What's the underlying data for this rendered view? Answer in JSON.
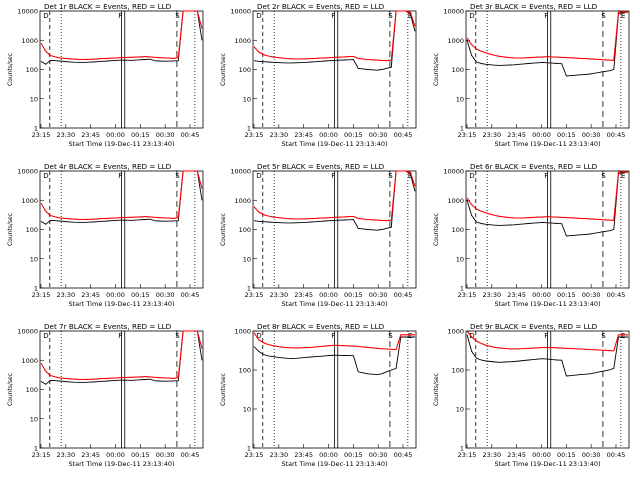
{
  "chart_data": [
    {
      "type": "line",
      "title": "Det 1r BLACK = Events, RED = LLD",
      "profile": "a",
      "xlabel": "Start Time (19-Dec-11 23:13:40)",
      "ylabel": "Counts/sec",
      "tick_labels_x": [
        "23:15",
        "23:30",
        "23:45",
        "00:00",
        "00:15",
        "00:30",
        "00:45"
      ],
      "tick_labels_y": [
        "1",
        "10",
        "100",
        "1000",
        "10000"
      ],
      "flags": [
        "D",
        "F",
        "S"
      ],
      "series": [
        {
          "color": "#000000",
          "values": [
            190,
            150,
            205,
            200,
            195,
            188,
            182,
            178,
            176,
            175,
            177,
            180,
            185,
            190,
            195,
            200,
            205,
            210,
            208,
            205,
            210,
            215,
            220,
            225,
            200,
            196,
            192,
            194,
            197,
            200,
            10000,
            10000,
            10000,
            10000,
            1000
          ]
        },
        {
          "color": "#ff0000",
          "values": [
            800,
            420,
            300,
            270,
            250,
            240,
            232,
            226,
            222,
            220,
            222,
            225,
            230,
            235,
            240,
            245,
            250,
            255,
            258,
            262,
            265,
            270,
            275,
            270,
            262,
            256,
            250,
            245,
            240,
            255,
            10000,
            10000,
            10000,
            10000,
            2500
          ]
        }
      ]
    },
    {
      "type": "line",
      "title": "Det 2r BLACK = Events, RED = LLD",
      "profile": "b",
      "xlabel": "Start Time (19-Dec-11 23:13:40)",
      "ylabel": "Counts/sec",
      "tick_labels_x": [
        "23:15",
        "23:30",
        "23:45",
        "00:00",
        "00:15",
        "00:30",
        "00:45"
      ],
      "tick_labels_y": [
        "1",
        "10",
        "100",
        "1000",
        "10000"
      ],
      "flags": [
        "D",
        "F",
        "S",
        "E"
      ],
      "series": [
        {
          "color": "#000000",
          "values": [
            200,
            190,
            185,
            180,
            176,
            172,
            170,
            168,
            168,
            170,
            172,
            175,
            180,
            185,
            190,
            195,
            200,
            205,
            208,
            212,
            215,
            218,
            110,
            105,
            100,
            98,
            95,
            100,
            110,
            120,
            10000,
            10000,
            10000,
            8000,
            2000
          ]
        },
        {
          "color": "#ff0000",
          "values": [
            600,
            400,
            320,
            290,
            270,
            255,
            245,
            238,
            232,
            228,
            230,
            232,
            236,
            240,
            245,
            250,
            255,
            260,
            265,
            270,
            275,
            280,
            240,
            230,
            220,
            215,
            210,
            205,
            200,
            210,
            10000,
            10000,
            10000,
            9000,
            3000
          ]
        }
      ]
    },
    {
      "type": "line",
      "title": "Det 3r BLACK = Events, RED = LLD",
      "profile": "c",
      "xlabel": "Start Time (19-Dec-11 23:13:40)",
      "ylabel": "Counts/sec",
      "tick_labels_x": [
        "23:15",
        "23:30",
        "23:45",
        "00:00",
        "00:15",
        "00:30",
        "00:45"
      ],
      "tick_labels_y": [
        "1",
        "10",
        "100",
        "1000",
        "10000"
      ],
      "flags": [
        "D",
        "F",
        "S",
        "E"
      ],
      "series": [
        {
          "color": "#000000",
          "values": [
            1000,
            300,
            180,
            160,
            150,
            145,
            140,
            138,
            140,
            142,
            145,
            150,
            155,
            160,
            165,
            170,
            175,
            170,
            165,
            160,
            158,
            60,
            62,
            64,
            66,
            68,
            70,
            75,
            80,
            85,
            90,
            100,
            8000,
            9000,
            9000
          ]
        },
        {
          "color": "#ff0000",
          "values": [
            1200,
            700,
            500,
            420,
            370,
            330,
            300,
            280,
            265,
            255,
            250,
            248,
            250,
            255,
            260,
            265,
            270,
            275,
            270,
            265,
            260,
            255,
            250,
            245,
            240,
            235,
            230,
            225,
            220,
            215,
            210,
            205,
            9000,
            9500,
            9500
          ]
        }
      ]
    },
    {
      "type": "line",
      "title": "Det 4r BLACK = Events, RED = LLD",
      "profile": "a",
      "xlabel": "Start Time (19-Dec-11 23:13:40)",
      "ylabel": "Counts/sec",
      "tick_labels_x": [
        "23:15",
        "23:30",
        "23:45",
        "00:00",
        "00:15",
        "00:30",
        "00:45"
      ],
      "tick_labels_y": [
        "1",
        "10",
        "100",
        "1000",
        "10000"
      ],
      "flags": [
        "D",
        "F",
        "S"
      ],
      "series": [
        {
          "color": "#000000",
          "values": [
            190,
            150,
            205,
            200,
            195,
            188,
            182,
            178,
            176,
            175,
            177,
            180,
            185,
            190,
            195,
            200,
            205,
            210,
            208,
            205,
            210,
            215,
            220,
            225,
            200,
            196,
            192,
            194,
            197,
            200,
            10000,
            10000,
            10000,
            10000,
            1000
          ]
        },
        {
          "color": "#ff0000",
          "values": [
            800,
            420,
            300,
            270,
            250,
            240,
            232,
            226,
            222,
            220,
            222,
            225,
            230,
            235,
            240,
            245,
            250,
            255,
            258,
            262,
            265,
            270,
            275,
            270,
            262,
            256,
            250,
            245,
            240,
            255,
            10000,
            10000,
            10000,
            10000,
            2500
          ]
        }
      ]
    },
    {
      "type": "line",
      "title": "Det 5r BLACK = Events, RED = LLD",
      "profile": "b",
      "xlabel": "Start Time (19-Dec-11 23:13:40)",
      "ylabel": "Counts/sec",
      "tick_labels_x": [
        "23:15",
        "23:30",
        "23:45",
        "00:00",
        "00:15",
        "00:30",
        "00:45"
      ],
      "tick_labels_y": [
        "1",
        "10",
        "100",
        "1000",
        "10000"
      ],
      "flags": [
        "D",
        "F",
        "S",
        "E"
      ],
      "series": [
        {
          "color": "#000000",
          "values": [
            200,
            190,
            185,
            180,
            176,
            172,
            170,
            168,
            168,
            170,
            172,
            175,
            180,
            185,
            190,
            195,
            200,
            205,
            208,
            212,
            215,
            218,
            110,
            105,
            100,
            98,
            95,
            100,
            110,
            120,
            10000,
            10000,
            10000,
            8000,
            2000
          ]
        },
        {
          "color": "#ff0000",
          "values": [
            600,
            400,
            320,
            290,
            270,
            255,
            245,
            238,
            232,
            228,
            230,
            232,
            236,
            240,
            245,
            250,
            255,
            260,
            265,
            270,
            275,
            280,
            240,
            230,
            220,
            215,
            210,
            205,
            200,
            210,
            10000,
            10000,
            10000,
            9000,
            3000
          ]
        }
      ]
    },
    {
      "type": "line",
      "title": "Det 6r BLACK = Events, RED = LLD",
      "profile": "c",
      "xlabel": "Start Time (19-Dec-11 23:13:40)",
      "ylabel": "Counts/sec",
      "tick_labels_x": [
        "23:15",
        "23:30",
        "23:45",
        "00:00",
        "00:15",
        "00:30",
        "00:45"
      ],
      "tick_labels_y": [
        "1",
        "10",
        "100",
        "1000",
        "10000"
      ],
      "flags": [
        "D",
        "F",
        "S",
        "E"
      ],
      "series": [
        {
          "color": "#000000",
          "values": [
            1000,
            300,
            180,
            160,
            150,
            145,
            140,
            138,
            140,
            142,
            145,
            150,
            155,
            160,
            165,
            170,
            175,
            170,
            165,
            160,
            158,
            60,
            62,
            64,
            66,
            68,
            70,
            75,
            80,
            85,
            90,
            100,
            8000,
            9000,
            9000
          ]
        },
        {
          "color": "#ff0000",
          "values": [
            1200,
            700,
            500,
            420,
            370,
            330,
            300,
            280,
            265,
            255,
            250,
            248,
            250,
            255,
            260,
            265,
            270,
            275,
            270,
            265,
            260,
            255,
            250,
            245,
            240,
            235,
            230,
            225,
            220,
            215,
            210,
            205,
            9000,
            9500,
            9500
          ]
        }
      ]
    },
    {
      "type": "line",
      "title": "Det 7r BLACK = Events, RED = LLD",
      "profile": "a",
      "xlabel": "Start Time (19-Dec-11 23:13:40)",
      "ylabel": "Counts/sec",
      "tick_labels_x": [
        "23:15",
        "23:30",
        "23:45",
        "00:00",
        "00:15",
        "00:30",
        "00:45"
      ],
      "tick_labels_y": [
        "1",
        "10",
        "100",
        "1000",
        "10000"
      ],
      "flags": [
        "D",
        "F",
        "S"
      ],
      "series": [
        {
          "color": "#000000",
          "values": [
            190,
            150,
            205,
            200,
            195,
            188,
            182,
            178,
            176,
            175,
            177,
            180,
            185,
            190,
            195,
            200,
            205,
            210,
            208,
            205,
            210,
            215,
            220,
            225,
            200,
            196,
            192,
            194,
            197,
            200,
            10000,
            10000,
            10000,
            10000,
            1000
          ]
        },
        {
          "color": "#ff0000",
          "values": [
            800,
            420,
            300,
            270,
            250,
            240,
            232,
            226,
            222,
            220,
            222,
            225,
            230,
            235,
            240,
            245,
            250,
            255,
            258,
            262,
            265,
            270,
            275,
            270,
            262,
            256,
            250,
            245,
            240,
            255,
            10000,
            10000,
            10000,
            10000,
            2500
          ]
        }
      ]
    },
    {
      "type": "line",
      "title": "Det 8r BLACK = Events, RED = LLD",
      "profile": "b",
      "xlabel": "Start Time (19-Dec-11 23:13:40)",
      "ylabel": "Counts/sec",
      "tick_labels_x": [
        "23:15",
        "23:30",
        "23:45",
        "00:00",
        "00:15",
        "00:30",
        "00:45"
      ],
      "tick_labels_y": [
        "1",
        "10",
        "100",
        "1000"
      ],
      "flags": [
        "D",
        "F",
        "S",
        "E"
      ],
      "series": [
        {
          "color": "#000000",
          "values": [
            400,
            300,
            250,
            230,
            220,
            210,
            205,
            200,
            198,
            200,
            205,
            210,
            215,
            220,
            225,
            230,
            235,
            240,
            238,
            236,
            234,
            232,
            90,
            85,
            80,
            78,
            76,
            80,
            90,
            100,
            110,
            700,
            700,
            700,
            700
          ]
        },
        {
          "color": "#ff0000",
          "values": [
            900,
            600,
            500,
            450,
            420,
            400,
            385,
            375,
            370,
            368,
            370,
            375,
            380,
            390,
            400,
            410,
            420,
            430,
            425,
            420,
            415,
            410,
            400,
            390,
            380,
            370,
            360,
            350,
            345,
            340,
            335,
            800,
            800,
            800,
            800
          ]
        }
      ]
    },
    {
      "type": "line",
      "title": "Det 9r BLACK = Events, RED = LLD",
      "profile": "c",
      "xlabel": "Start Time (19-Dec-11 23:13:40)",
      "ylabel": "Counts/sec",
      "tick_labels_x": [
        "23:15",
        "23:30",
        "23:45",
        "00:00",
        "00:15",
        "00:30",
        "00:45"
      ],
      "tick_labels_y": [
        "1",
        "10",
        "100",
        "1000"
      ],
      "flags": [
        "D",
        "F",
        "S",
        "E"
      ],
      "series": [
        {
          "color": "#000000",
          "values": [
            800,
            300,
            200,
            180,
            170,
            165,
            160,
            158,
            160,
            162,
            165,
            170,
            175,
            180,
            185,
            190,
            195,
            190,
            185,
            180,
            178,
            70,
            72,
            74,
            76,
            78,
            80,
            85,
            90,
            95,
            100,
            110,
            700,
            700,
            700
          ]
        },
        {
          "color": "#ff0000",
          "values": [
            1000,
            700,
            550,
            480,
            430,
            400,
            380,
            365,
            355,
            350,
            348,
            350,
            355,
            360,
            365,
            370,
            375,
            380,
            375,
            370,
            365,
            360,
            355,
            350,
            345,
            340,
            335,
            330,
            325,
            320,
            315,
            310,
            800,
            800,
            800
          ]
        }
      ]
    }
  ]
}
